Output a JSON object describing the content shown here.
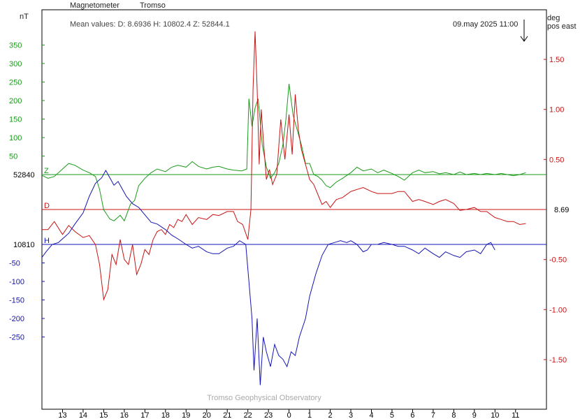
{
  "header": {
    "instrument": "Magnetometer",
    "station": "Tromso",
    "mean_values": "Mean values:  D: 8.6936    H: 10802.4    Z: 52844.1",
    "timestamp": "09.may 2025 11:00",
    "left_unit": "nT",
    "right_unit_line1": "deg",
    "right_unit_line2": "pos east",
    "footer": "Tromso Geophysical Observatory"
  },
  "colors": {
    "z": "#1a9a1a",
    "d": "#c81414",
    "h": "#1414b4",
    "axis": "#000000"
  },
  "chart_data": {
    "type": "line",
    "x_ticks": [
      "13",
      "14",
      "15",
      "16",
      "17",
      "18",
      "19",
      "20",
      "21",
      "22",
      "23",
      "0",
      "1",
      "2",
      "3",
      "4",
      "5",
      "6",
      "7",
      "8",
      "9",
      "10",
      "11"
    ],
    "xlim": [
      12.0,
      36.5
    ],
    "z_axis": {
      "unit": "nT",
      "baseline_label": "52840",
      "ticks": [
        50,
        100,
        150,
        200,
        250,
        300,
        350
      ],
      "tick_labels": [
        "50",
        "100",
        "150",
        "200",
        "250",
        "300",
        "350"
      ]
    },
    "h_axis": {
      "unit": "nT",
      "baseline_label": "10810",
      "ticks": [
        -50,
        -100,
        -150,
        -200,
        -250
      ],
      "tick_labels": [
        "-50",
        "-100",
        "-150",
        "-200",
        "-250"
      ]
    },
    "d_axis": {
      "unit": "deg pos east",
      "baseline_label": "8.69",
      "ticks": [
        1.5,
        1.0,
        0.5,
        -0.5,
        -1.0,
        -1.5
      ],
      "tick_labels": [
        "1.50",
        "1.00",
        "0.50",
        "-0.50",
        "-1.00",
        "-1.50"
      ]
    },
    "series": [
      {
        "name": "Z",
        "values": [
          [
            12.0,
            -2
          ],
          [
            12.3,
            -10
          ],
          [
            12.6,
            -5
          ],
          [
            13.0,
            15
          ],
          [
            13.3,
            30
          ],
          [
            13.6,
            25
          ],
          [
            14.0,
            12
          ],
          [
            14.3,
            5
          ],
          [
            14.6,
            -5
          ],
          [
            14.8,
            -40
          ],
          [
            15.0,
            -95
          ],
          [
            15.3,
            -120
          ],
          [
            15.5,
            -125
          ],
          [
            15.8,
            -110
          ],
          [
            16.0,
            -125
          ],
          [
            16.3,
            -80
          ],
          [
            16.5,
            -70
          ],
          [
            16.7,
            -30
          ],
          [
            17.0,
            -10
          ],
          [
            17.3,
            5
          ],
          [
            17.6,
            15
          ],
          [
            18.0,
            8
          ],
          [
            18.3,
            20
          ],
          [
            18.6,
            25
          ],
          [
            19.0,
            20
          ],
          [
            19.3,
            35
          ],
          [
            19.6,
            22
          ],
          [
            20.0,
            15
          ],
          [
            20.3,
            20
          ],
          [
            20.6,
            22
          ],
          [
            21.0,
            15
          ],
          [
            21.3,
            12
          ],
          [
            21.7,
            10
          ],
          [
            21.95,
            15
          ],
          [
            22.05,
            205
          ],
          [
            22.2,
            130
          ],
          [
            22.35,
            180
          ],
          [
            22.5,
            205
          ],
          [
            22.7,
            80
          ],
          [
            22.9,
            20
          ],
          [
            23.1,
            -10
          ],
          [
            23.3,
            5
          ],
          [
            23.5,
            30
          ],
          [
            23.7,
            80
          ],
          [
            23.85,
            150
          ],
          [
            24.0,
            245
          ],
          [
            24.2,
            160
          ],
          [
            24.4,
            120
          ],
          [
            24.6,
            80
          ],
          [
            24.8,
            30
          ],
          [
            25.0,
            30
          ],
          [
            25.2,
            0
          ],
          [
            25.4,
            -5
          ],
          [
            25.6,
            -15
          ],
          [
            25.8,
            -30
          ],
          [
            26.0,
            -35
          ],
          [
            26.3,
            -20
          ],
          [
            26.6,
            -10
          ],
          [
            27.0,
            5
          ],
          [
            27.3,
            20
          ],
          [
            27.6,
            10
          ],
          [
            28.0,
            15
          ],
          [
            28.3,
            5
          ],
          [
            28.6,
            12
          ],
          [
            29.0,
            3
          ],
          [
            29.3,
            -5
          ],
          [
            29.6,
            -15
          ],
          [
            30.0,
            5
          ],
          [
            30.3,
            12
          ],
          [
            30.6,
            5
          ],
          [
            31.0,
            8
          ],
          [
            31.3,
            2
          ],
          [
            31.6,
            5
          ],
          [
            32.0,
            0
          ],
          [
            32.3,
            7
          ],
          [
            32.6,
            0
          ],
          [
            33.0,
            3
          ],
          [
            33.3,
            0
          ],
          [
            33.6,
            3
          ],
          [
            34.0,
            0
          ],
          [
            34.3,
            3
          ],
          [
            34.6,
            0
          ],
          [
            34.9,
            -3
          ],
          [
            35.2,
            0
          ],
          [
            35.5,
            5
          ]
        ]
      },
      {
        "name": "D",
        "values": [
          [
            12.0,
            -0.2
          ],
          [
            12.3,
            -0.2
          ],
          [
            12.6,
            -0.12
          ],
          [
            13.0,
            -0.25
          ],
          [
            13.3,
            -0.16
          ],
          [
            13.6,
            -0.22
          ],
          [
            14.0,
            -0.28
          ],
          [
            14.3,
            -0.26
          ],
          [
            14.6,
            -0.35
          ],
          [
            14.8,
            -0.55
          ],
          [
            15.0,
            -0.9
          ],
          [
            15.2,
            -0.8
          ],
          [
            15.4,
            -0.45
          ],
          [
            15.6,
            -0.55
          ],
          [
            15.8,
            -0.3
          ],
          [
            16.0,
            -0.5
          ],
          [
            16.2,
            -0.55
          ],
          [
            16.4,
            -0.35
          ],
          [
            16.6,
            -0.65
          ],
          [
            16.8,
            -0.55
          ],
          [
            17.0,
            -0.4
          ],
          [
            17.2,
            -0.45
          ],
          [
            17.4,
            -0.3
          ],
          [
            17.6,
            -0.22
          ],
          [
            17.8,
            -0.2
          ],
          [
            18.0,
            -0.25
          ],
          [
            18.2,
            -0.15
          ],
          [
            18.4,
            -0.18
          ],
          [
            18.6,
            -0.1
          ],
          [
            18.8,
            -0.12
          ],
          [
            19.0,
            -0.05
          ],
          [
            19.3,
            -0.15
          ],
          [
            19.6,
            -0.08
          ],
          [
            20.0,
            -0.1
          ],
          [
            20.3,
            -0.05
          ],
          [
            20.6,
            -0.06
          ],
          [
            21.0,
            -0.02
          ],
          [
            21.3,
            -0.02
          ],
          [
            21.5,
            -0.12
          ],
          [
            21.75,
            -0.15
          ],
          [
            22.0,
            -0.3
          ],
          [
            22.15,
            0.0
          ],
          [
            22.25,
            1.2
          ],
          [
            22.35,
            1.78
          ],
          [
            22.45,
            1.2
          ],
          [
            22.55,
            0.45
          ],
          [
            22.65,
            1.0
          ],
          [
            22.75,
            0.7
          ],
          [
            22.9,
            0.3
          ],
          [
            23.05,
            0.4
          ],
          [
            23.2,
            0.25
          ],
          [
            23.4,
            0.35
          ],
          [
            23.6,
            0.9
          ],
          [
            23.8,
            0.5
          ],
          [
            24.0,
            0.95
          ],
          [
            24.15,
            0.55
          ],
          [
            24.3,
            1.15
          ],
          [
            24.45,
            0.8
          ],
          [
            24.6,
            0.6
          ],
          [
            24.8,
            0.45
          ],
          [
            25.0,
            0.3
          ],
          [
            25.2,
            0.25
          ],
          [
            25.4,
            0.15
          ],
          [
            25.6,
            0.05
          ],
          [
            25.8,
            0.08
          ],
          [
            26.0,
            0.02
          ],
          [
            26.3,
            0.1
          ],
          [
            26.6,
            0.12
          ],
          [
            27.0,
            0.18
          ],
          [
            27.3,
            0.2
          ],
          [
            27.6,
            0.22
          ],
          [
            28.0,
            0.18
          ],
          [
            28.3,
            0.16
          ],
          [
            28.6,
            0.16
          ],
          [
            29.0,
            0.16
          ],
          [
            29.3,
            0.18
          ],
          [
            29.6,
            0.18
          ],
          [
            30.0,
            0.08
          ],
          [
            30.3,
            0.1
          ],
          [
            30.6,
            0.08
          ],
          [
            31.0,
            0.05
          ],
          [
            31.3,
            0.08
          ],
          [
            31.6,
            0.1
          ],
          [
            32.0,
            0.06
          ],
          [
            32.3,
            -0.01
          ],
          [
            32.6,
            0.0
          ],
          [
            33.0,
            0.02
          ],
          [
            33.3,
            -0.02
          ],
          [
            33.6,
            -0.02
          ],
          [
            34.0,
            -0.08
          ],
          [
            34.3,
            -0.1
          ],
          [
            34.6,
            -0.12
          ],
          [
            34.9,
            -0.12
          ],
          [
            35.2,
            -0.15
          ],
          [
            35.5,
            -0.14
          ]
        ]
      },
      {
        "name": "H",
        "values": [
          [
            12.0,
            -35
          ],
          [
            12.2,
            -20
          ],
          [
            12.5,
            0
          ],
          [
            12.8,
            5
          ],
          [
            13.0,
            15
          ],
          [
            13.3,
            30
          ],
          [
            13.6,
            55
          ],
          [
            14.0,
            85
          ],
          [
            14.3,
            130
          ],
          [
            14.6,
            165
          ],
          [
            14.9,
            180
          ],
          [
            15.1,
            200
          ],
          [
            15.3,
            180
          ],
          [
            15.5,
            160
          ],
          [
            15.7,
            170
          ],
          [
            15.9,
            150
          ],
          [
            16.1,
            130
          ],
          [
            16.4,
            110
          ],
          [
            16.7,
            100
          ],
          [
            17.0,
            80
          ],
          [
            17.3,
            60
          ],
          [
            17.6,
            55
          ],
          [
            18.0,
            40
          ],
          [
            18.3,
            25
          ],
          [
            18.6,
            15
          ],
          [
            19.0,
            0
          ],
          [
            19.3,
            -10
          ],
          [
            19.6,
            -5
          ],
          [
            20.0,
            -20
          ],
          [
            20.3,
            -25
          ],
          [
            20.6,
            -25
          ],
          [
            21.0,
            -10
          ],
          [
            21.3,
            -5
          ],
          [
            21.6,
            10
          ],
          [
            21.9,
            0
          ],
          [
            22.05,
            -100
          ],
          [
            22.2,
            -200
          ],
          [
            22.3,
            -340
          ],
          [
            22.45,
            -200
          ],
          [
            22.6,
            -380
          ],
          [
            22.75,
            -250
          ],
          [
            22.9,
            -290
          ],
          [
            23.1,
            -330
          ],
          [
            23.3,
            -270
          ],
          [
            23.5,
            -300
          ],
          [
            23.7,
            -310
          ],
          [
            23.9,
            -330
          ],
          [
            24.1,
            -290
          ],
          [
            24.3,
            -300
          ],
          [
            24.5,
            -250
          ],
          [
            24.8,
            -200
          ],
          [
            25.0,
            -140
          ],
          [
            25.3,
            -80
          ],
          [
            25.6,
            -30
          ],
          [
            25.9,
            0
          ],
          [
            26.2,
            5
          ],
          [
            26.5,
            10
          ],
          [
            26.8,
            5
          ],
          [
            27.0,
            10
          ],
          [
            27.3,
            0
          ],
          [
            27.6,
            -20
          ],
          [
            27.8,
            -15
          ],
          [
            28.0,
            0
          ],
          [
            28.3,
            0
          ],
          [
            28.6,
            5
          ],
          [
            29.0,
            0
          ],
          [
            29.3,
            -5
          ],
          [
            29.6,
            -5
          ],
          [
            30.0,
            -15
          ],
          [
            30.3,
            -25
          ],
          [
            30.6,
            -10
          ],
          [
            31.0,
            -25
          ],
          [
            31.3,
            -35
          ],
          [
            31.6,
            -20
          ],
          [
            32.0,
            -30
          ],
          [
            32.3,
            -35
          ],
          [
            32.6,
            -20
          ],
          [
            33.0,
            -15
          ],
          [
            33.3,
            -25
          ],
          [
            33.6,
            0
          ],
          [
            33.8,
            5
          ],
          [
            34.0,
            -15
          ]
        ]
      }
    ]
  }
}
